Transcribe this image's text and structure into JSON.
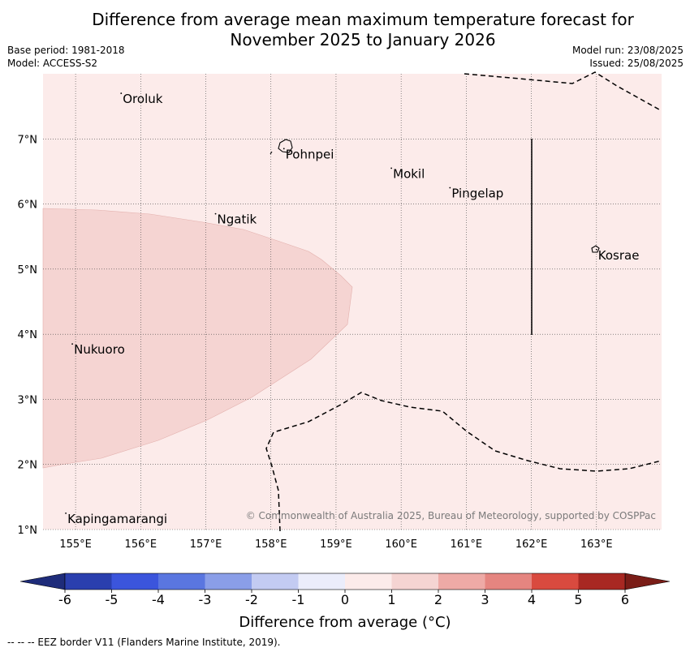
{
  "title": {
    "line1": "Difference from average mean maximum temperature forecast for",
    "line2": "November 2025 to January 2026"
  },
  "meta_left": {
    "base_period": "Base period: 1981-2018",
    "model": "Model: ACCESS-S2"
  },
  "meta_right": {
    "model_run": "Model run: 23/08/2025",
    "issued": "Issued: 25/08/2025"
  },
  "map": {
    "lon_range": [
      154.5,
      164.0
    ],
    "lat_range": [
      1.0,
      8.0
    ],
    "lon_ticks": [
      "155°E",
      "156°E",
      "157°E",
      "158°E",
      "159°E",
      "160°E",
      "161°E",
      "162°E",
      "163°E"
    ],
    "lat_ticks": [
      "7°N",
      "6°N",
      "5°N",
      "4°N",
      "3°N",
      "2°N",
      "1°N"
    ],
    "background_category": "0 to 1",
    "anomaly_region_category": "1 to 2",
    "places": [
      {
        "name": "Oroluk",
        "lon": 155.7,
        "lat": 7.7
      },
      {
        "name": "Pohnpei",
        "lon": 158.2,
        "lat": 6.85
      },
      {
        "name": "Mokil",
        "lon": 159.85,
        "lat": 6.55
      },
      {
        "name": "Pingelap",
        "lon": 160.75,
        "lat": 6.25
      },
      {
        "name": "Ngatik",
        "lon": 157.15,
        "lat": 5.85
      },
      {
        "name": "Kosrae",
        "lon": 163.0,
        "lat": 5.3
      },
      {
        "name": "Nukuoro",
        "lon": 154.95,
        "lat": 3.85
      },
      {
        "name": "Kapingamarangi",
        "lon": 154.85,
        "lat": 1.25
      }
    ],
    "credit": "© Commonwealth of Australia 2025, Bureau of Meteorology, supported by COSPPac"
  },
  "colorbar": {
    "ticks": [
      "-6",
      "-5",
      "-4",
      "-3",
      "-2",
      "-1",
      "0",
      "1",
      "2",
      "3",
      "4",
      "5",
      "6"
    ],
    "colors": [
      "#2a3fae",
      "#3b55dc",
      "#5a76e0",
      "#8a9ee8",
      "#c3cbf2",
      "#ebedfb",
      "#fcebea",
      "#f5d4d2",
      "#eeaaa6",
      "#e58580",
      "#d94a3f",
      "#a82822"
    ],
    "under_color": "#1e2c7a",
    "over_color": "#7a1d17",
    "label": "Difference from average (°C)"
  },
  "footer": "--  --  -- EEZ border V11 (Flanders Marine Institute, 2019)."
}
